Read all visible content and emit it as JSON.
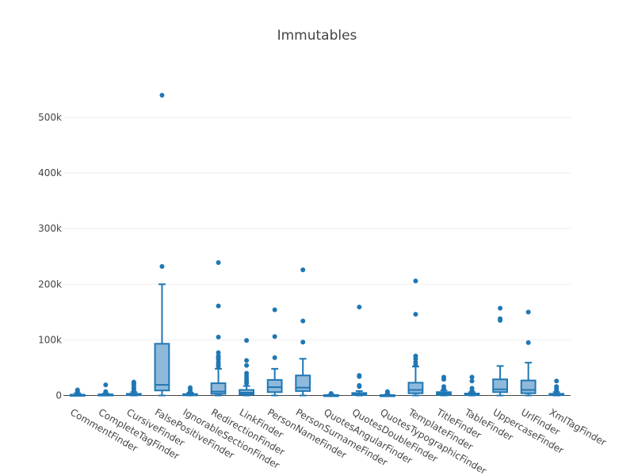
{
  "chart_data": {
    "type": "box",
    "title": "Immutables",
    "xlabel": "",
    "ylabel": "",
    "ylim": [
      -10000,
      570000
    ],
    "y_ticks": [
      0,
      100000,
      200000,
      300000,
      400000,
      500000
    ],
    "y_tick_labels": [
      "0",
      "100k",
      "200k",
      "300k",
      "400k",
      "500k"
    ],
    "grid": true,
    "legend": "none",
    "colors": {
      "box_line": "#1f77b4",
      "box_fill": "#8fb9db",
      "title": "#444444",
      "axis": "#444444"
    },
    "categories": [
      "CommentFinder",
      "CompleteTagFinder",
      "CursiveFinder",
      "FalsePositiveFinder",
      "IgnorableSectionFinder",
      "RedirectionFinder",
      "LinkFinder",
      "PersonNameFinder",
      "PersonSurnameFinder",
      "QuotesAngularFinder",
      "QuotesDoubleFinder",
      "QuotesTypographicFinder",
      "TemplateFinder",
      "TitleFinder",
      "TableFinder",
      "UppercaseFinder",
      "UrlFinder",
      "XmlTagFinder"
    ],
    "boxes": [
      {
        "name": "CommentFinder",
        "lowerfence": 0,
        "q1": 200,
        "median": 600,
        "q3": 1500,
        "upperfence": 4000,
        "outliers": [
          6000,
          8000,
          10000
        ]
      },
      {
        "name": "CompleteTagFinder",
        "lowerfence": 0,
        "q1": 300,
        "median": 1000,
        "q3": 2000,
        "upperfence": 3500,
        "outliers": [
          5000,
          7000,
          19000
        ]
      },
      {
        "name": "CursiveFinder",
        "lowerfence": 0,
        "q1": 500,
        "median": 1500,
        "q3": 3000,
        "upperfence": 6000,
        "outliers": [
          8000,
          11000,
          14000,
          18000,
          21000,
          24000
        ]
      },
      {
        "name": "FalsePositiveFinder",
        "lowerfence": 0,
        "q1": 9000,
        "median": 19000,
        "q3": 93000,
        "upperfence": 200000,
        "outliers": [
          232000,
          540000
        ]
      },
      {
        "name": "IgnorableSectionFinder",
        "lowerfence": 0,
        "q1": 300,
        "median": 1000,
        "q3": 2500,
        "upperfence": 5000,
        "outliers": [
          7000,
          10000,
          14000
        ]
      },
      {
        "name": "RedirectionFinder",
        "lowerfence": 0,
        "q1": 3000,
        "median": 7000,
        "q3": 22000,
        "upperfence": 48000,
        "outliers": [
          52000,
          56000,
          60000,
          65000,
          68000,
          71000,
          77000,
          105000,
          161000,
          239000
        ]
      },
      {
        "name": "LinkFinder",
        "lowerfence": 0,
        "q1": 2000,
        "median": 5000,
        "q3": 10000,
        "upperfence": 17000,
        "outliers": [
          22000,
          26000,
          30000,
          35000,
          40000,
          54000,
          63000,
          99000
        ]
      },
      {
        "name": "PersonNameFinder",
        "lowerfence": 0,
        "q1": 6000,
        "median": 15000,
        "q3": 28000,
        "upperfence": 48000,
        "outliers": [
          68000,
          106000,
          154000
        ]
      },
      {
        "name": "PersonSurnameFinder",
        "lowerfence": 0,
        "q1": 8000,
        "median": 14000,
        "q3": 36000,
        "upperfence": 66000,
        "outliers": [
          96000,
          134000,
          226000
        ]
      },
      {
        "name": "QuotesAngularFinder",
        "lowerfence": 0,
        "q1": 100,
        "median": 300,
        "q3": 800,
        "upperfence": 1500,
        "outliers": [
          2500,
          3500
        ]
      },
      {
        "name": "QuotesDoubleFinder",
        "lowerfence": 0,
        "q1": 800,
        "median": 2000,
        "q3": 4500,
        "upperfence": 8000,
        "outliers": [
          16000,
          18000,
          34000,
          36000,
          159000
        ]
      },
      {
        "name": "QuotesTypographicFinder",
        "lowerfence": 0,
        "q1": 100,
        "median": 300,
        "q3": 700,
        "upperfence": 1500,
        "outliers": [
          3000,
          5000,
          7000
        ]
      },
      {
        "name": "TemplateFinder",
        "lowerfence": 0,
        "q1": 4000,
        "median": 10000,
        "q3": 23000,
        "upperfence": 52000,
        "outliers": [
          55000,
          60000,
          66000,
          71000,
          146000,
          206000
        ]
      },
      {
        "name": "TitleFinder",
        "lowerfence": 0,
        "q1": 1000,
        "median": 3500,
        "q3": 6000,
        "upperfence": 9000,
        "outliers": [
          12000,
          16000,
          29000,
          33000
        ]
      },
      {
        "name": "TableFinder",
        "lowerfence": 0,
        "q1": 500,
        "median": 1500,
        "q3": 3500,
        "upperfence": 6000,
        "outliers": [
          9000,
          13000,
          26000,
          33000
        ]
      },
      {
        "name": "UppercaseFinder",
        "lowerfence": 0,
        "q1": 6000,
        "median": 11000,
        "q3": 29000,
        "upperfence": 53000,
        "outliers": [
          135000,
          138000,
          157000
        ]
      },
      {
        "name": "UrlFinder",
        "lowerfence": 0,
        "q1": 4000,
        "median": 10000,
        "q3": 27000,
        "upperfence": 59000,
        "outliers": [
          95000,
          150000
        ]
      },
      {
        "name": "XmlTagFinder",
        "lowerfence": 0,
        "q1": 500,
        "median": 1500,
        "q3": 3000,
        "upperfence": 6000,
        "outliers": [
          8000,
          10000,
          13000,
          16000,
          26000
        ]
      }
    ]
  }
}
